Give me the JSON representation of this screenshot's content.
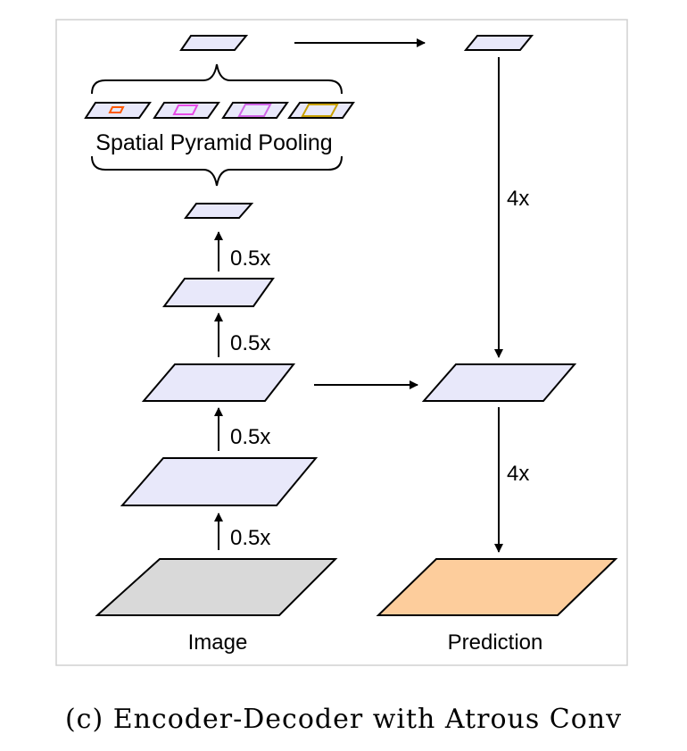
{
  "labels": {
    "spp": "Spatial Pyramid Pooling",
    "upsample_top": "4x",
    "upsample_bottom": "4x",
    "downsample_1": "0.5x",
    "downsample_2": "0.5x",
    "downsample_3": "0.5x",
    "downsample_4": "0.5x",
    "input": "Image",
    "output": "Prediction"
  },
  "caption": "(c) Encoder-Decoder with Atrous Conv",
  "colors": {
    "feature_map": "#e8e8fa",
    "image": "#d9d9d9",
    "prediction": "#fdcd9c",
    "stroke": "#000000",
    "pool_1": "#ff5a00",
    "pool_2": "#e64be6",
    "pool_3": "#d066e6",
    "pool_4": "#c8a000",
    "frame": "#d0d0d0"
  }
}
